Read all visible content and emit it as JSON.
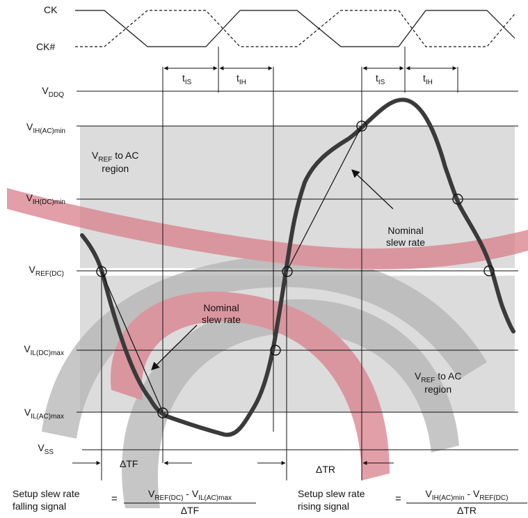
{
  "signals": {
    "ck": "CK",
    "ck_n": "CK#"
  },
  "timing": {
    "tis": {
      "main": "t",
      "sub": "IS"
    },
    "tih": {
      "main": "t",
      "sub": "IH"
    }
  },
  "levels": {
    "vddq": {
      "main": "V",
      "sub": "DDQ"
    },
    "vih_ac_min": {
      "main": "V",
      "sub": "IH(AC)min"
    },
    "vih_dc_min": {
      "main": "V",
      "sub": "IH(DC)min"
    },
    "vref_dc": {
      "main": "V",
      "sub": "REF(DC)"
    },
    "vil_dc_max": {
      "main": "V",
      "sub": "IL(DC)max"
    },
    "vil_ac_max": {
      "main": "V",
      "sub": "IL(AC)max"
    },
    "vss": {
      "main": "V",
      "sub": "SS"
    }
  },
  "regions": {
    "upper": {
      "v": "V",
      "sub": "REF",
      "rest": " to AC",
      "line2": "region"
    },
    "lower": {
      "v": "V",
      "sub": "REF",
      "rest": " to AC",
      "line2": "region"
    }
  },
  "annotations": {
    "nominal_rising": {
      "line1": "Nominal",
      "line2": "slew rate"
    },
    "nominal_falling": {
      "line1": "Nominal",
      "line2": "slew rate"
    }
  },
  "deltas": {
    "tf": "ΔTF",
    "tr": "ΔTR"
  },
  "equations": {
    "falling": {
      "label_line1": "Setup slew rate",
      "label_line2": "falling signal",
      "equals": "=",
      "num_a": "V",
      "num_a_sub": "REF(DC)",
      "num_op": " - ",
      "num_b": "V",
      "num_b_sub": "IL(AC)max",
      "den": "ΔTF"
    },
    "rising": {
      "label_line1": "Setup slew rate",
      "label_line2": "rising signal",
      "equals": "=",
      "num_a": "V",
      "num_a_sub": "IH(AC)min",
      "num_op": " - ",
      "num_b": "V",
      "num_b_sub": "REF(DC)",
      "den": "ΔTR"
    }
  },
  "colors": {
    "region_fill": "#dcdcdc",
    "waveform": "#3a3a3a",
    "watermark_gray": "#b4b4b4",
    "watermark_red": "#d97f8b"
  }
}
